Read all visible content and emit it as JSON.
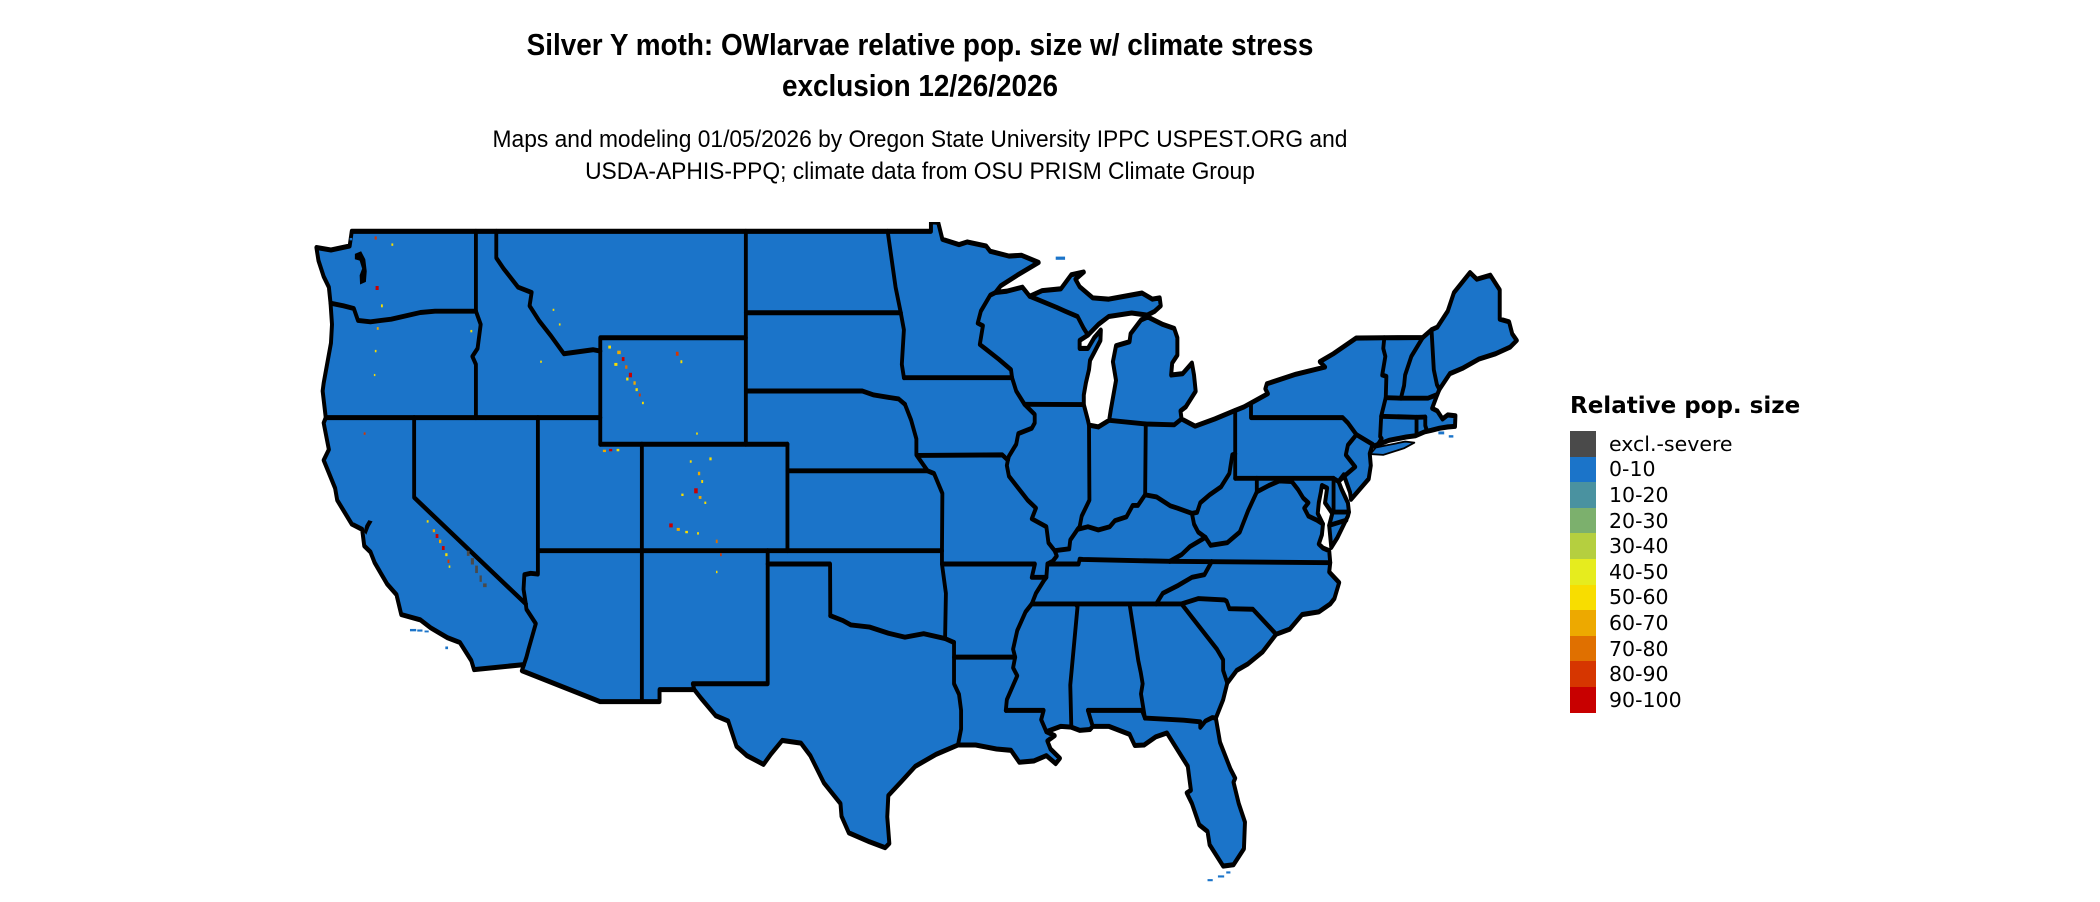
{
  "title": {
    "line1": "Silver Y moth: OWlarvae relative pop. size w/ climate stress",
    "line2": "exclusion 12/26/2026"
  },
  "subtitle": {
    "line1": "Maps and modeling 01/05/2026 by Oregon State University IPPC USPEST.ORG and",
    "line2": "USDA-APHIS-PPQ; climate data from OSU PRISM Climate Group"
  },
  "legend": {
    "title": "Relative pop. size",
    "items": [
      {
        "label": "excl.-severe",
        "color": "#4a4a4a"
      },
      {
        "label": "0-10",
        "color": "#1b74c9"
      },
      {
        "label": "10-20",
        "color": "#4a92a0"
      },
      {
        "label": "20-30",
        "color": "#7cb06d"
      },
      {
        "label": "30-40",
        "color": "#b5cf3f"
      },
      {
        "label": "40-50",
        "color": "#e6ec1e"
      },
      {
        "label": "50-60",
        "color": "#f8dd00"
      },
      {
        "label": "60-70",
        "color": "#eda900"
      },
      {
        "label": "70-80",
        "color": "#e07000"
      },
      {
        "label": "80-90",
        "color": "#d63600"
      },
      {
        "label": "90-100",
        "color": "#c80000"
      }
    ]
  },
  "map": {
    "land_color": "#1b74c9",
    "border_color": "#000000",
    "water_color": "#ffffff",
    "hotspots": [
      [
        -121.85,
        48.75,
        "#d63600",
        0.1,
        0.12
      ],
      [
        -121.05,
        48.5,
        "#f8dd00",
        0.09,
        0.09
      ],
      [
        -121.78,
        46.87,
        "#c80000",
        0.15,
        0.15
      ],
      [
        -121.55,
        46.2,
        "#f8dd00",
        0.09,
        0.11
      ],
      [
        -121.75,
        45.35,
        "#eda900",
        0.09,
        0.1
      ],
      [
        -121.85,
        44.5,
        "#f8dd00",
        0.08,
        0.09
      ],
      [
        -121.9,
        43.6,
        "#f8dd00",
        0.07,
        0.08
      ],
      [
        -117.25,
        45.25,
        "#f8dd00",
        0.09,
        0.09
      ],
      [
        -122.38,
        41.4,
        "#d63600",
        0.09,
        0.09
      ],
      [
        -113.3,
        46.05,
        "#f8dd00",
        0.08,
        0.08
      ],
      [
        -113.0,
        45.5,
        "#f8dd00",
        0.08,
        0.08
      ],
      [
        -113.9,
        44.1,
        "#f8dd00",
        0.08,
        0.08
      ],
      [
        -110.6,
        44.65,
        "#f8dd00",
        0.13,
        0.11
      ],
      [
        -110.15,
        44.45,
        "#eda900",
        0.17,
        0.13
      ],
      [
        -109.95,
        44.2,
        "#c80000",
        0.13,
        0.15
      ],
      [
        -110.3,
        44.0,
        "#f8dd00",
        0.15,
        0.11
      ],
      [
        -109.8,
        43.9,
        "#e07000",
        0.11,
        0.13
      ],
      [
        -109.6,
        43.6,
        "#c80000",
        0.15,
        0.17
      ],
      [
        -109.75,
        43.45,
        "#f8dd00",
        0.11,
        0.11
      ],
      [
        -109.4,
        43.3,
        "#eda900",
        0.11,
        0.13
      ],
      [
        -109.3,
        43.05,
        "#f8dd00",
        0.11,
        0.11
      ],
      [
        -109.15,
        42.85,
        "#d63600",
        0.09,
        0.11
      ],
      [
        -109.0,
        42.55,
        "#f8dd00",
        0.09,
        0.09
      ],
      [
        -107.35,
        44.4,
        "#d63600",
        0.13,
        0.15
      ],
      [
        -107.15,
        44.1,
        "#f8dd00",
        0.09,
        0.11
      ],
      [
        -106.4,
        41.4,
        "#f8dd00",
        0.08,
        0.08
      ],
      [
        -110.85,
        40.75,
        "#eda900",
        0.15,
        0.09
      ],
      [
        -110.55,
        40.78,
        "#c80000",
        0.15,
        0.09
      ],
      [
        -110.2,
        40.78,
        "#f8dd00",
        0.13,
        0.09
      ],
      [
        -105.75,
        40.45,
        "#f8dd00",
        0.11,
        0.11
      ],
      [
        -106.7,
        40.35,
        "#f8dd00",
        0.09,
        0.09
      ],
      [
        -106.3,
        39.9,
        "#eda900",
        0.11,
        0.13
      ],
      [
        -106.15,
        39.6,
        "#f8dd00",
        0.09,
        0.11
      ],
      [
        -106.45,
        39.25,
        "#c80000",
        0.17,
        0.19
      ],
      [
        -106.25,
        39.0,
        "#eda900",
        0.13,
        0.11
      ],
      [
        -107.1,
        39.1,
        "#f8dd00",
        0.11,
        0.09
      ],
      [
        -106.0,
        38.8,
        "#f8dd00",
        0.09,
        0.09
      ],
      [
        -107.65,
        37.95,
        "#c80000",
        0.17,
        0.15
      ],
      [
        -107.3,
        37.8,
        "#eda900",
        0.15,
        0.11
      ],
      [
        -106.9,
        37.7,
        "#f8dd00",
        0.13,
        0.09
      ],
      [
        -106.35,
        37.65,
        "#f8dd00",
        0.09,
        0.09
      ],
      [
        -105.45,
        37.35,
        "#e07000",
        0.09,
        0.13
      ],
      [
        -105.25,
        36.85,
        "#d63600",
        0.08,
        0.11
      ],
      [
        -105.45,
        36.2,
        "#f8dd00",
        0.07,
        0.09
      ],
      [
        -119.35,
        38.1,
        "#f8dd00",
        0.09,
        0.09
      ],
      [
        -119.05,
        37.75,
        "#eda900",
        0.11,
        0.11
      ],
      [
        -118.9,
        37.55,
        "#c80000",
        0.13,
        0.15
      ],
      [
        -118.75,
        37.35,
        "#eda900",
        0.11,
        0.13
      ],
      [
        -118.6,
        37.1,
        "#c80000",
        0.13,
        0.15
      ],
      [
        -118.45,
        36.85,
        "#f8dd00",
        0.11,
        0.11
      ],
      [
        -118.35,
        36.6,
        "#d63600",
        0.09,
        0.13
      ],
      [
        -118.3,
        36.4,
        "#f8dd00",
        0.08,
        0.09
      ],
      [
        -117.4,
        36.9,
        "#4a4a4a",
        0.13,
        0.19
      ],
      [
        -117.2,
        36.6,
        "#4a4a4a",
        0.15,
        0.24
      ],
      [
        -117.0,
        36.3,
        "#4a4a4a",
        0.13,
        0.28
      ],
      [
        -116.8,
        35.95,
        "#4a4a4a",
        0.11,
        0.24
      ],
      [
        -116.6,
        35.7,
        "#4a4a4a",
        0.17,
        0.14
      ]
    ]
  }
}
